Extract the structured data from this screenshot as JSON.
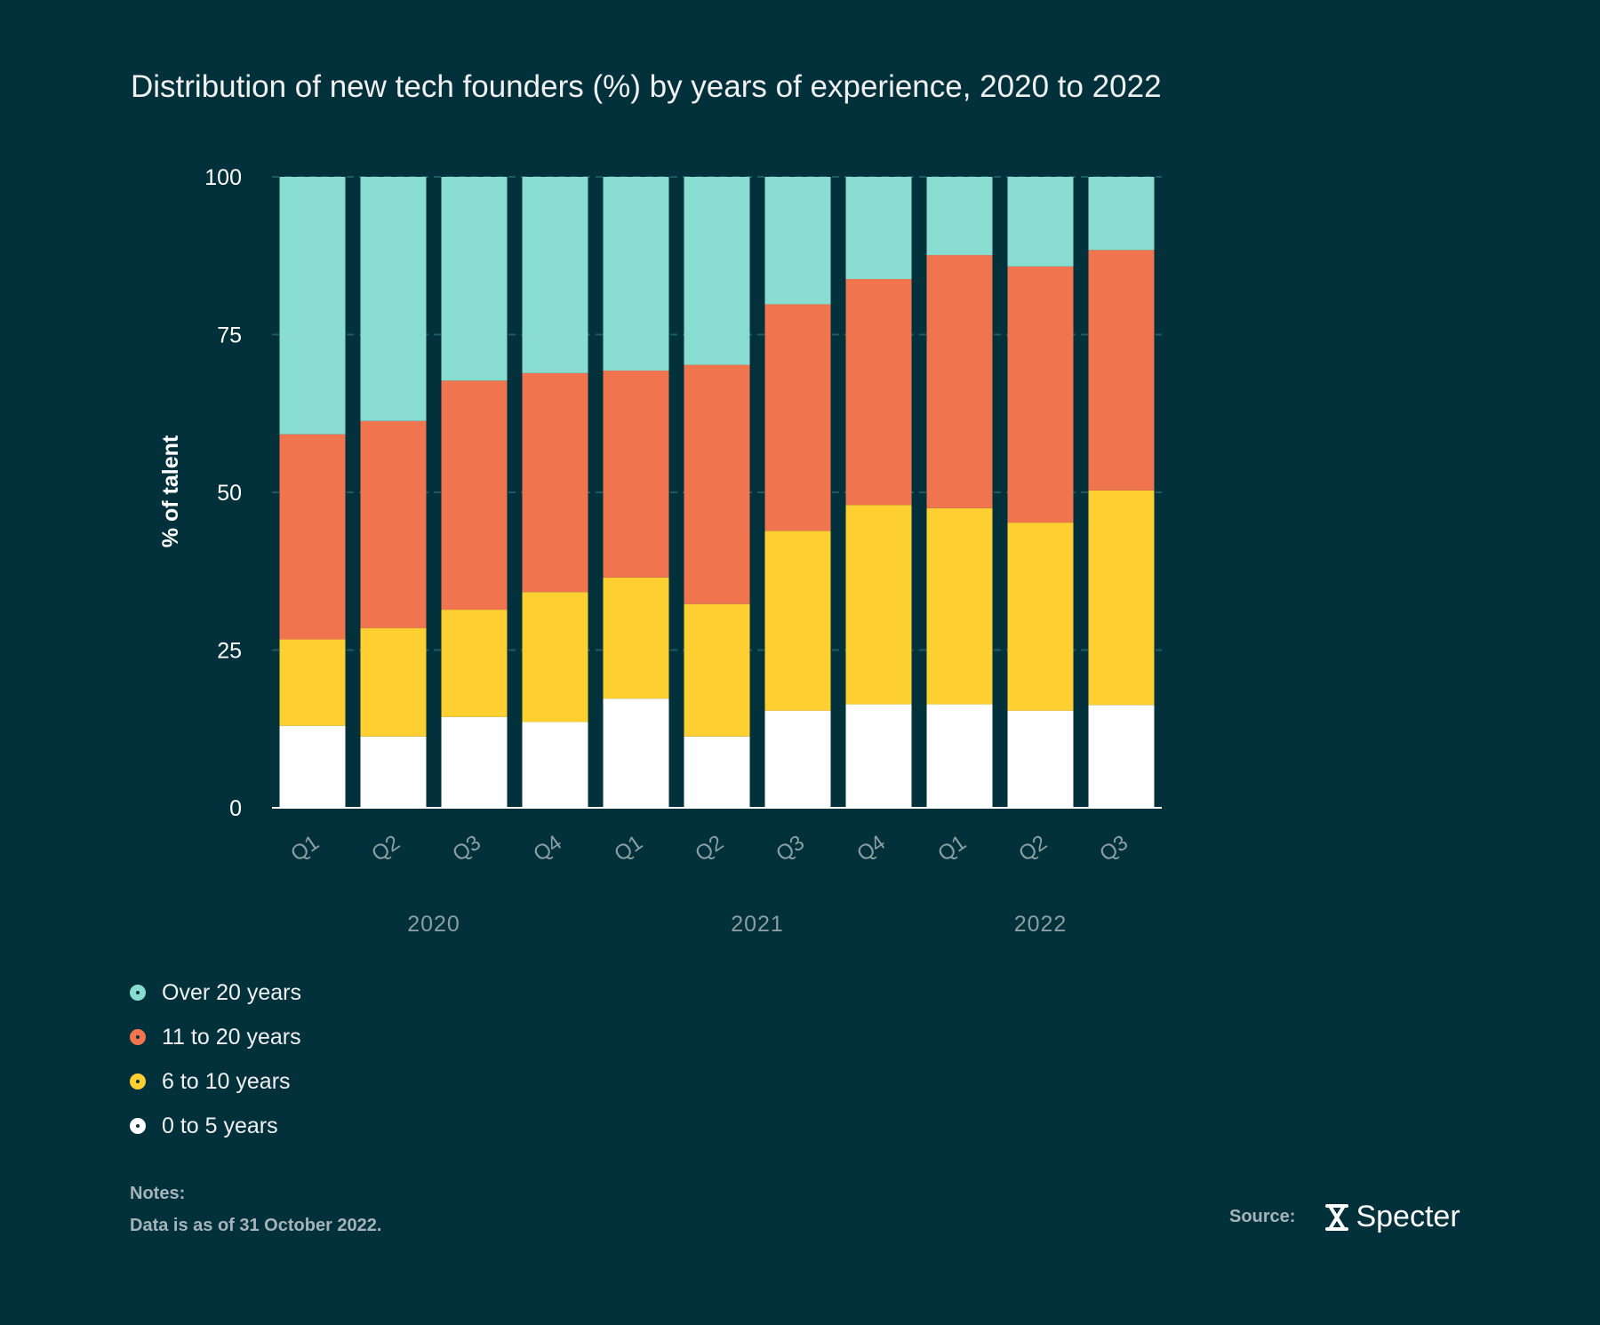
{
  "title": "Distribution of new tech founders (%) by years of experience, 2020 to 2022",
  "colors": {
    "background": "#02313b",
    "over20": "#88ddd0",
    "y11to20": "#f0744d",
    "y6to10": "#fdcf31",
    "y0to5": "#ffffff"
  },
  "chart_data": {
    "type": "bar",
    "stacked": true,
    "ylabel": "% of talent",
    "ylim": [
      0,
      100
    ],
    "yticks": [
      "0",
      "25",
      "50",
      "75",
      "100"
    ],
    "categories": [
      "Q1",
      "Q2",
      "Q3",
      "Q4",
      "Q1",
      "Q2",
      "Q3",
      "Q4",
      "Q1",
      "Q2",
      "Q3"
    ],
    "years": [
      "2020",
      "2021",
      "2022"
    ],
    "series": [
      {
        "name": "0 to 5 years",
        "color": "#ffffff",
        "values": [
          13,
          11.3,
          14.4,
          13.6,
          17.3,
          11.3,
          15.4,
          16.4,
          16.4,
          15.4,
          16.3
        ]
      },
      {
        "name": "6 to 10 years",
        "color": "#fdcf31",
        "values": [
          13.7,
          17.2,
          17.0,
          20.6,
          19.2,
          21.0,
          28.5,
          31.6,
          31.1,
          29.8,
          34.0
        ]
      },
      {
        "name": "11 to 20 years",
        "color": "#f0744d",
        "values": [
          32.5,
          32.8,
          36.3,
          34.7,
          32.8,
          37.9,
          35.9,
          35.8,
          40.1,
          40.6,
          38.1
        ]
      },
      {
        "name": "Over 20 years",
        "color": "#88ddd0",
        "values": [
          40.8,
          38.7,
          32.3,
          31.1,
          30.7,
          29.8,
          20.2,
          16.2,
          12.4,
          14.2,
          11.6
        ]
      }
    ],
    "legend_position": "bottom-left",
    "grid": true
  },
  "legend": [
    {
      "label": "Over 20 years",
      "color": "#88ddd0"
    },
    {
      "label": "11 to 20 years",
      "color": "#f0744d"
    },
    {
      "label": "6 to 10 years",
      "color": "#fdcf31"
    },
    {
      "label": "0 to 5 years",
      "color": "#ffffff"
    }
  ],
  "notes": {
    "heading": "Notes:",
    "text": "Data is as of 31 October 2022."
  },
  "source": {
    "label": "Source:",
    "brand": "Specter",
    "brand_icon": "hourglass-icon"
  }
}
